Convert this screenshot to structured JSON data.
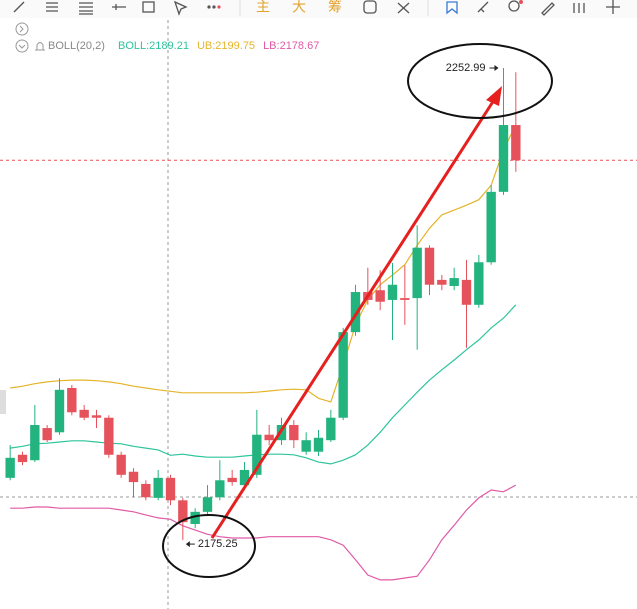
{
  "toolbar": {
    "labels": [
      "主",
      "大",
      "筹"
    ]
  },
  "chart_data": {
    "type": "candlestick",
    "indicator": "BOLL(20,2)",
    "ylim": [
      2163.9,
      2260.9
    ],
    "up_color": "#22b37f",
    "down_color": "#e5525c",
    "open": [
      2185.5,
      2189.3,
      2188.4,
      2193.7,
      2193.0,
      2200.3,
      2196.7,
      2195.8,
      2195.4,
      2189.3,
      2186.5,
      2184.5,
      2182.2,
      2185.5,
      2181.8,
      2177.9,
      2179.9,
      2182.3,
      2185.5,
      2184.3,
      2186.0,
      2192.6,
      2191.7,
      2194.2,
      2189.8,
      2189.8,
      2191.7,
      2195.4,
      2209.5,
      2216.1,
      2216.4,
      2214.8,
      2215.1,
      2215.1,
      2223.4,
      2218.1,
      2217.1,
      2218.1,
      2214.0,
      2221.0,
      2232.6,
      2243.6
    ],
    "high": [
      2190.9,
      2189.8,
      2197.5,
      2194.2,
      2201.9,
      2200.8,
      2197.5,
      2196.7,
      2195.8,
      2189.8,
      2187.1,
      2185.1,
      2186.8,
      2186.0,
      2182.2,
      2180.5,
      2184.3,
      2188.4,
      2186.8,
      2188.1,
      2196.7,
      2194.2,
      2195.4,
      2195.0,
      2193.0,
      2193.4,
      2196.7,
      2210.2,
      2217.3,
      2220.1,
      2219.7,
      2220.9,
      2220.5,
      2227.1,
      2223.8,
      2218.9,
      2220.1,
      2221.4,
      2222.2,
      2233.7,
      2252.99,
      2252.3
    ],
    "low": [
      2185.1,
      2187.6,
      2188.1,
      2191.4,
      2192.6,
      2195.8,
      2195.0,
      2193.7,
      2188.8,
      2185.5,
      2182.3,
      2181.8,
      2181.8,
      2181.0,
      2175.25,
      2177.2,
      2179.4,
      2181.8,
      2184.2,
      2183.5,
      2185.5,
      2190.9,
      2190.9,
      2190.4,
      2189.3,
      2189.1,
      2191.4,
      2195.0,
      2208.9,
      2214.0,
      2213.1,
      2208.2,
      2210.7,
      2206.6,
      2215.6,
      2216.4,
      2216.4,
      2206.9,
      2213.5,
      2220.6,
      2232.1,
      2235.9
    ],
    "close": [
      2188.8,
      2188.1,
      2194.2,
      2191.7,
      2200.0,
      2196.3,
      2195.4,
      2195.4,
      2189.3,
      2186.0,
      2184.8,
      2182.3,
      2185.5,
      2181.8,
      2178.2,
      2179.9,
      2182.3,
      2185.1,
      2184.8,
      2186.8,
      2192.6,
      2191.7,
      2194.2,
      2191.7,
      2191.7,
      2192.1,
      2195.4,
      2209.5,
      2216.1,
      2214.8,
      2214.5,
      2217.3,
      2214.8,
      2223.4,
      2217.3,
      2217.3,
      2218.4,
      2214.0,
      2221.0,
      2232.6,
      2243.6,
      2237.8
    ],
    "series": [
      {
        "name": "BOLL:2189.21",
        "color": "#2ec49c",
        "values": [
          2190.4,
          2190.7,
          2191.1,
          2191.2,
          2191.4,
          2191.6,
          2191.6,
          2191.4,
          2191.2,
          2191.1,
          2190.7,
          2190.4,
          2190.1,
          2189.21,
          2189.4,
          2189.1,
          2188.9,
          2188.9,
          2188.9,
          2189.1,
          2189.3,
          2189.4,
          2189.4,
          2189.3,
          2188.8,
          2188.1,
          2187.8,
          2188.4,
          2189.3,
          2190.9,
          2193.0,
          2195.4,
          2197.5,
          2199.6,
          2201.6,
          2203.3,
          2204.9,
          2206.6,
          2208.2,
          2210.2,
          2211.8,
          2214.0
        ]
      },
      {
        "name": "UB:2199.75",
        "color": "#e6b42a",
        "values": [
          2200.3,
          2200.6,
          2201.0,
          2201.3,
          2201.5,
          2201.6,
          2201.6,
          2201.5,
          2201.3,
          2201.0,
          2200.6,
          2200.3,
          2200.0,
          2199.75,
          2199.5,
          2199.5,
          2199.5,
          2199.5,
          2199.5,
          2199.5,
          2199.6,
          2199.8,
          2200.0,
          2200.1,
          2200.0,
          2198.6,
          2198.0,
          2204.1,
          2210.7,
          2214.8,
          2217.3,
          2218.9,
          2220.6,
          2223.8,
          2226.6,
          2228.8,
          2229.6,
          2230.4,
          2231.3,
          2233.7,
          2239.5,
          2243.6
        ]
      },
      {
        "name": "LB:2178.67",
        "color": "#e05aa6",
        "values": [
          2180.5,
          2180.5,
          2180.7,
          2180.7,
          2180.5,
          2180.5,
          2180.5,
          2180.5,
          2180.5,
          2180.2,
          2179.9,
          2179.4,
          2178.9,
          2178.67,
          2177.6,
          2176.9,
          2176.2,
          2175.8,
          2175.6,
          2175.6,
          2175.6,
          2175.8,
          2175.8,
          2175.8,
          2175.8,
          2175.8,
          2175.3,
          2174.4,
          2172.0,
          2169.5,
          2168.7,
          2168.7,
          2169.0,
          2169.3,
          2172.0,
          2175.3,
          2177.7,
          2180.2,
          2182.2,
          2183.5,
          2183.2,
          2184.3
        ]
      }
    ],
    "annotations": [
      {
        "value": 2252.99,
        "index": 40
      },
      {
        "value": 2175.25,
        "index": 14
      }
    ]
  }
}
